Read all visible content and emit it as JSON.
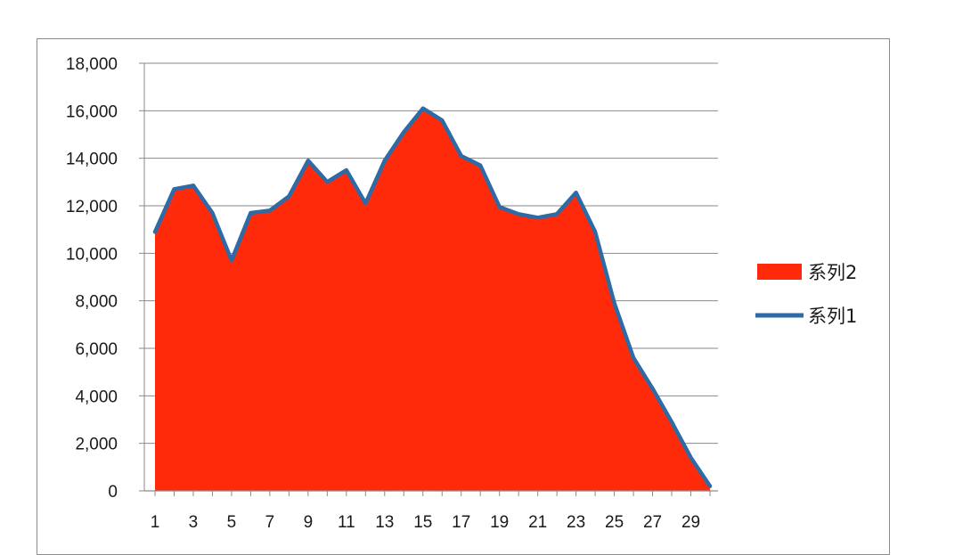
{
  "chart_data": {
    "type": "area",
    "title": "",
    "xlabel": "",
    "ylabel": "",
    "x": [
      1,
      2,
      3,
      4,
      5,
      6,
      7,
      8,
      9,
      10,
      11,
      12,
      13,
      14,
      15,
      16,
      17,
      18,
      19,
      20,
      21,
      22,
      23,
      24,
      25,
      26,
      27,
      28,
      29,
      30
    ],
    "x_tick_labels": [
      "1",
      "3",
      "5",
      "7",
      "9",
      "11",
      "13",
      "15",
      "17",
      "19",
      "21",
      "23",
      "25",
      "27",
      "29"
    ],
    "y_tick_labels": [
      "0",
      "2,000",
      "4,000",
      "6,000",
      "8,000",
      "10,000",
      "12,000",
      "14,000",
      "16,000",
      "18,000"
    ],
    "ylim": [
      0,
      18000
    ],
    "grid": "horizontal",
    "legend_position": "right",
    "series": [
      {
        "name": "系列2",
        "type": "area",
        "color": "#ff2a0a",
        "values": [
          10900,
          12700,
          12850,
          11700,
          9700,
          11700,
          11800,
          12400,
          13900,
          13000,
          13500,
          12100,
          13900,
          15100,
          16100,
          15600,
          14100,
          13700,
          11950,
          11650,
          11500,
          11650,
          12550,
          10900,
          7900,
          5600,
          4300,
          2900,
          1400,
          200
        ]
      },
      {
        "name": "系列1",
        "type": "line",
        "color": "#2e6aa6",
        "values": [
          10900,
          12700,
          12850,
          11700,
          9700,
          11700,
          11800,
          12400,
          13900,
          13000,
          13500,
          12100,
          13900,
          15100,
          16100,
          15600,
          14100,
          13700,
          11950,
          11650,
          11500,
          11650,
          12550,
          10900,
          7900,
          5600,
          4300,
          2900,
          1400,
          200
        ]
      }
    ]
  }
}
